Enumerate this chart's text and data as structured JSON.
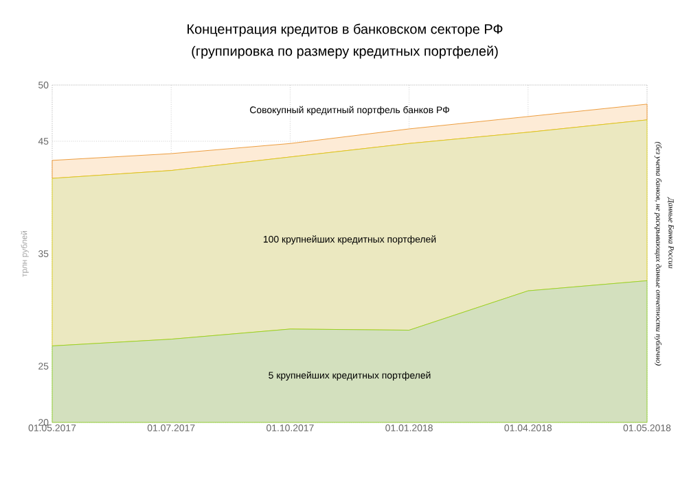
{
  "chart_data": {
    "type": "area",
    "title": "Концентрация кредитов в банковском секторе РФ",
    "subtitle": "(группировка по размеру кредитных портфелей)",
    "ylabel": "трлн рублей",
    "categories": [
      "01.05.2017",
      "01.07.2017",
      "01.10.2017",
      "01.01.2018",
      "01.04.2018",
      "01.05.2018"
    ],
    "series": [
      {
        "name": "Совокупный кредитный портфель банков РФ",
        "color": "#fdebd6",
        "values": [
          43.3,
          43.9,
          44.8,
          46.1,
          47.2,
          48.3
        ]
      },
      {
        "name": "100 крупнейших кредитных портфелей",
        "color": "#ebe8c0",
        "values": [
          41.7,
          42.4,
          43.6,
          44.8,
          45.8,
          46.9
        ]
      },
      {
        "name": "5 крупнейших кредитных портфелей",
        "color": "#d3e0be",
        "values": [
          26.8,
          27.4,
          28.3,
          28.2,
          31.7,
          32.6
        ]
      }
    ],
    "ylim": [
      20,
      50
    ],
    "yticks": [
      20,
      25,
      35,
      45,
      50
    ],
    "grid": true,
    "legend": false,
    "annotations": [
      "Данные Банка России",
      "(без учета банков, не раскрывающих данные отчетности публично)"
    ]
  }
}
